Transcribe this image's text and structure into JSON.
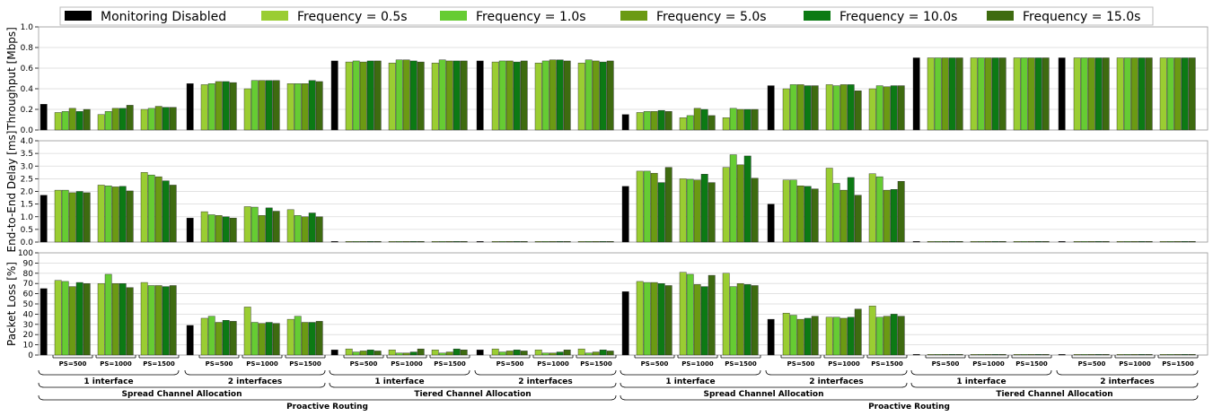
{
  "legend": [
    {
      "label": "Monitoring Disabled",
      "color": "#000000"
    },
    {
      "label": "Frequency = 0.5s",
      "color": "#9acd32"
    },
    {
      "label": "Frequency = 1.0s",
      "color": "#66cc33"
    },
    {
      "label": "Frequency = 5.0s",
      "color": "#6b9a13"
    },
    {
      "label": "Frequency = 10.0s",
      "color": "#0c7a14"
    },
    {
      "label": "Frequency = 15.0s",
      "color": "#3e6b10"
    }
  ],
  "chart_data": [
    {
      "type": "bar",
      "ylabel": "Throughput [Mbps]",
      "ylim": [
        0,
        1.0
      ],
      "yticks": [
        "0.0",
        "0.2",
        "0.4",
        "0.6",
        "0.8",
        "1.0"
      ],
      "grid": true,
      "series": [
        {
          "name": "Monitoring Disabled",
          "values": [
            0.25,
            0.45,
            0.67,
            0.67,
            0.15,
            0.43,
            0.7,
            0.7
          ]
        },
        {
          "name": "Frequency = 0.5s",
          "values": [
            0.17,
            0.15,
            0.2,
            0.44,
            0.4,
            0.45,
            0.66,
            0.65,
            0.65,
            0.66,
            0.65,
            0.65,
            0.17,
            0.12,
            0.12,
            0.4,
            0.44,
            0.4,
            0.7,
            0.7,
            0.7,
            0.7,
            0.7,
            0.7
          ]
        },
        {
          "name": "Frequency = 1.0s",
          "values": [
            0.18,
            0.18,
            0.21,
            0.45,
            0.48,
            0.45,
            0.67,
            0.68,
            0.68,
            0.67,
            0.67,
            0.68,
            0.18,
            0.14,
            0.21,
            0.44,
            0.43,
            0.43,
            0.7,
            0.7,
            0.7,
            0.7,
            0.7,
            0.7
          ]
        },
        {
          "name": "Frequency = 5.0s",
          "values": [
            0.21,
            0.21,
            0.23,
            0.47,
            0.48,
            0.45,
            0.66,
            0.68,
            0.67,
            0.67,
            0.68,
            0.67,
            0.18,
            0.21,
            0.2,
            0.44,
            0.44,
            0.42,
            0.7,
            0.7,
            0.7,
            0.7,
            0.7,
            0.7
          ]
        },
        {
          "name": "Frequency = 10.0s",
          "values": [
            0.18,
            0.21,
            0.22,
            0.47,
            0.48,
            0.48,
            0.67,
            0.67,
            0.67,
            0.66,
            0.68,
            0.66,
            0.19,
            0.2,
            0.2,
            0.43,
            0.44,
            0.43,
            0.7,
            0.7,
            0.7,
            0.7,
            0.7,
            0.7
          ]
        },
        {
          "name": "Frequency = 15.0s",
          "values": [
            0.2,
            0.24,
            0.22,
            0.46,
            0.48,
            0.47,
            0.67,
            0.66,
            0.67,
            0.67,
            0.67,
            0.67,
            0.18,
            0.14,
            0.2,
            0.43,
            0.38,
            0.43,
            0.7,
            0.7,
            0.7,
            0.7,
            0.7,
            0.7
          ]
        }
      ]
    },
    {
      "type": "bar",
      "ylabel": "End-to-End Delay [ms]",
      "ylim": [
        0,
        4.0
      ],
      "yticks": [
        "0.0",
        "0.5",
        "1.0",
        "1.5",
        "2.0",
        "2.5",
        "3.0",
        "3.5",
        "4.0"
      ],
      "grid": true,
      "series": [
        {
          "name": "Monitoring Disabled",
          "values": [
            1.85,
            0.95,
            0.02,
            0.02,
            2.2,
            1.5,
            0.02,
            0.02
          ]
        },
        {
          "name": "Frequency = 0.5s",
          "values": [
            2.05,
            2.25,
            2.75,
            1.2,
            1.4,
            1.28,
            0.02,
            0.02,
            0.02,
            0.02,
            0.02,
            0.02,
            2.8,
            2.5,
            2.95,
            2.45,
            2.92,
            2.7,
            0.02,
            0.02,
            0.02,
            0.02,
            0.02,
            0.02
          ]
        },
        {
          "name": "Frequency = 1.0s",
          "values": [
            2.05,
            2.22,
            2.65,
            1.08,
            1.38,
            1.05,
            0.02,
            0.02,
            0.02,
            0.02,
            0.02,
            0.02,
            2.8,
            2.48,
            3.45,
            2.45,
            2.32,
            2.58,
            0.02,
            0.02,
            0.02,
            0.02,
            0.02,
            0.02
          ]
        },
        {
          "name": "Frequency = 5.0s",
          "values": [
            1.95,
            2.18,
            2.58,
            1.05,
            1.05,
            1.0,
            0.02,
            0.02,
            0.02,
            0.02,
            0.02,
            0.02,
            2.72,
            2.45,
            3.05,
            2.22,
            2.05,
            2.05,
            0.02,
            0.02,
            0.02,
            0.02,
            0.02,
            0.02
          ]
        },
        {
          "name": "Frequency = 10.0s",
          "values": [
            2.0,
            2.2,
            2.42,
            1.0,
            1.35,
            1.15,
            0.02,
            0.02,
            0.02,
            0.02,
            0.02,
            0.02,
            2.35,
            2.68,
            3.4,
            2.2,
            2.55,
            2.08,
            0.02,
            0.02,
            0.02,
            0.02,
            0.02,
            0.02
          ]
        },
        {
          "name": "Frequency = 15.0s",
          "values": [
            1.95,
            2.02,
            2.25,
            0.95,
            1.22,
            1.0,
            0.02,
            0.02,
            0.02,
            0.02,
            0.02,
            0.02,
            2.95,
            2.35,
            2.52,
            2.1,
            1.85,
            2.4,
            0.02,
            0.02,
            0.02,
            0.02,
            0.02,
            0.02
          ]
        }
      ]
    },
    {
      "type": "bar",
      "ylabel": "Packet Loss [%]",
      "ylim": [
        0,
        100
      ],
      "yticks": [
        "0",
        "10",
        "20",
        "30",
        "40",
        "50",
        "60",
        "70",
        "80",
        "90",
        "100"
      ],
      "grid": true,
      "series": [
        {
          "name": "Monitoring Disabled",
          "values": [
            65,
            29,
            5,
            5,
            62,
            35,
            0,
            0
          ]
        },
        {
          "name": "Frequency = 0.5s",
          "values": [
            73,
            70,
            71,
            36,
            47,
            35,
            6,
            5,
            5,
            6,
            5,
            6,
            72,
            81,
            80,
            41,
            37,
            48,
            0,
            0,
            0,
            0,
            0,
            0
          ]
        },
        {
          "name": "Frequency = 1.0s",
          "values": [
            72,
            79,
            68,
            38,
            32,
            38,
            3,
            2,
            2,
            3,
            2,
            2,
            71,
            79,
            67,
            39,
            37,
            37,
            0,
            0,
            0,
            0,
            0,
            0
          ]
        },
        {
          "name": "Frequency = 5.0s",
          "values": [
            67,
            70,
            68,
            32,
            31,
            32,
            4,
            2,
            3,
            4,
            2,
            3,
            71,
            69,
            70,
            35,
            36,
            38,
            0,
            0,
            0,
            0,
            0,
            0
          ]
        },
        {
          "name": "Frequency = 10.0s",
          "values": [
            71,
            70,
            67,
            34,
            32,
            32,
            5,
            3,
            6,
            5,
            3,
            5,
            70,
            67,
            69,
            36,
            37,
            40,
            0,
            0,
            0,
            0,
            0,
            0
          ]
        },
        {
          "name": "Frequency = 15.0s",
          "values": [
            70,
            66,
            68,
            33,
            31,
            33,
            4,
            6,
            5,
            4,
            5,
            4,
            68,
            78,
            68,
            38,
            45,
            38,
            0,
            0,
            0,
            0,
            0,
            0
          ]
        }
      ]
    }
  ],
  "ps_labels": [
    "PS=500",
    "PS=1000",
    "PS=1500"
  ],
  "interface_labels": [
    "1 interface",
    "2 interfaces"
  ],
  "allocation_labels": [
    "Spread Channel Allocation",
    "Tiered Channel Allocation"
  ],
  "routing_label": "Proactive Routing"
}
